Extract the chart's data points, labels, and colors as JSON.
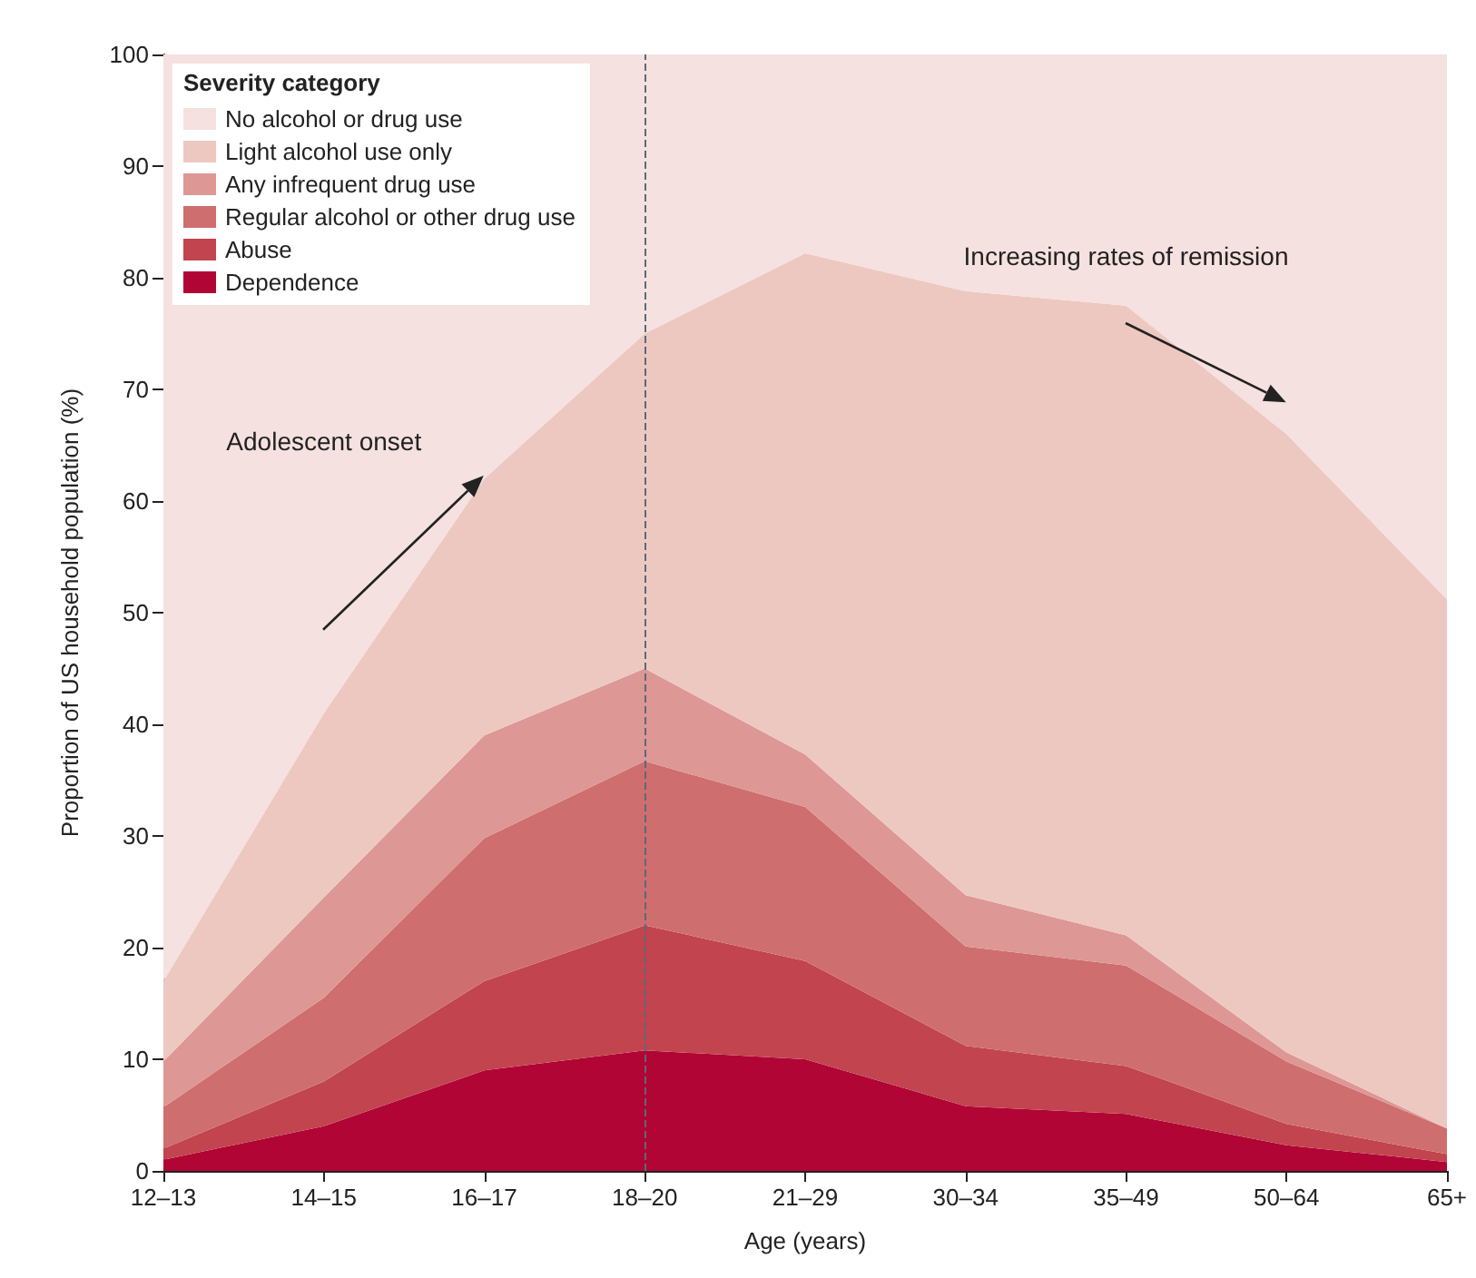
{
  "chart_data": {
    "type": "area",
    "stacked": true,
    "xlabel": "Age (years)",
    "ylabel": "Proportion of US household population (%)",
    "legend_title": "Severity category",
    "legend": "top left",
    "categories": [
      "12–13",
      "14–15",
      "16–17",
      "18–20",
      "21–29",
      "30–34",
      "35–49",
      "50–64",
      "65+"
    ],
    "ylim": [
      0,
      100
    ],
    "yticks": [
      0,
      10,
      20,
      30,
      40,
      50,
      60,
      70,
      80,
      90,
      100
    ],
    "grid": false,
    "series": [
      {
        "name": "Dependence",
        "color": "#b10535",
        "values": [
          1,
          4,
          9,
          10.8,
          10,
          5.8,
          5.1,
          2.3,
          0.8
        ]
      },
      {
        "name": "Abuse",
        "color": "#c1444f",
        "values": [
          1,
          4,
          8,
          11.2,
          8.8,
          5.4,
          4.3,
          1.9,
          0.7
        ]
      },
      {
        "name": "Regular alcohol or other drug use",
        "color": "#cf6e6e",
        "values": [
          3.7,
          7.5,
          12.8,
          14.7,
          13.8,
          8.9,
          9,
          5.6,
          2.3
        ]
      },
      {
        "name": "Any infrequent drug use",
        "color": "#dd9795",
        "values": [
          4.1,
          9,
          9.2,
          8.3,
          4.7,
          4.6,
          2.7,
          0.8,
          0
        ]
      },
      {
        "name": "Light alcohol use only",
        "color": "#edc8c1",
        "values": [
          7.2,
          16.5,
          23,
          30,
          44.9,
          54.1,
          56.4,
          55.4,
          47.4
        ]
      },
      {
        "name": "No alcohol or drug use",
        "color": "#f5e1df",
        "values": [
          83,
          59,
          38,
          25,
          17.8,
          21.2,
          22.5,
          34,
          48.8
        ]
      }
    ],
    "ref_lines": [
      {
        "axis": "x",
        "value": "18–20",
        "line_style": "dashed",
        "color": "#5a6a78"
      }
    ],
    "annotations": [
      "Adolescent onset",
      "Increasing rates of remission"
    ]
  }
}
